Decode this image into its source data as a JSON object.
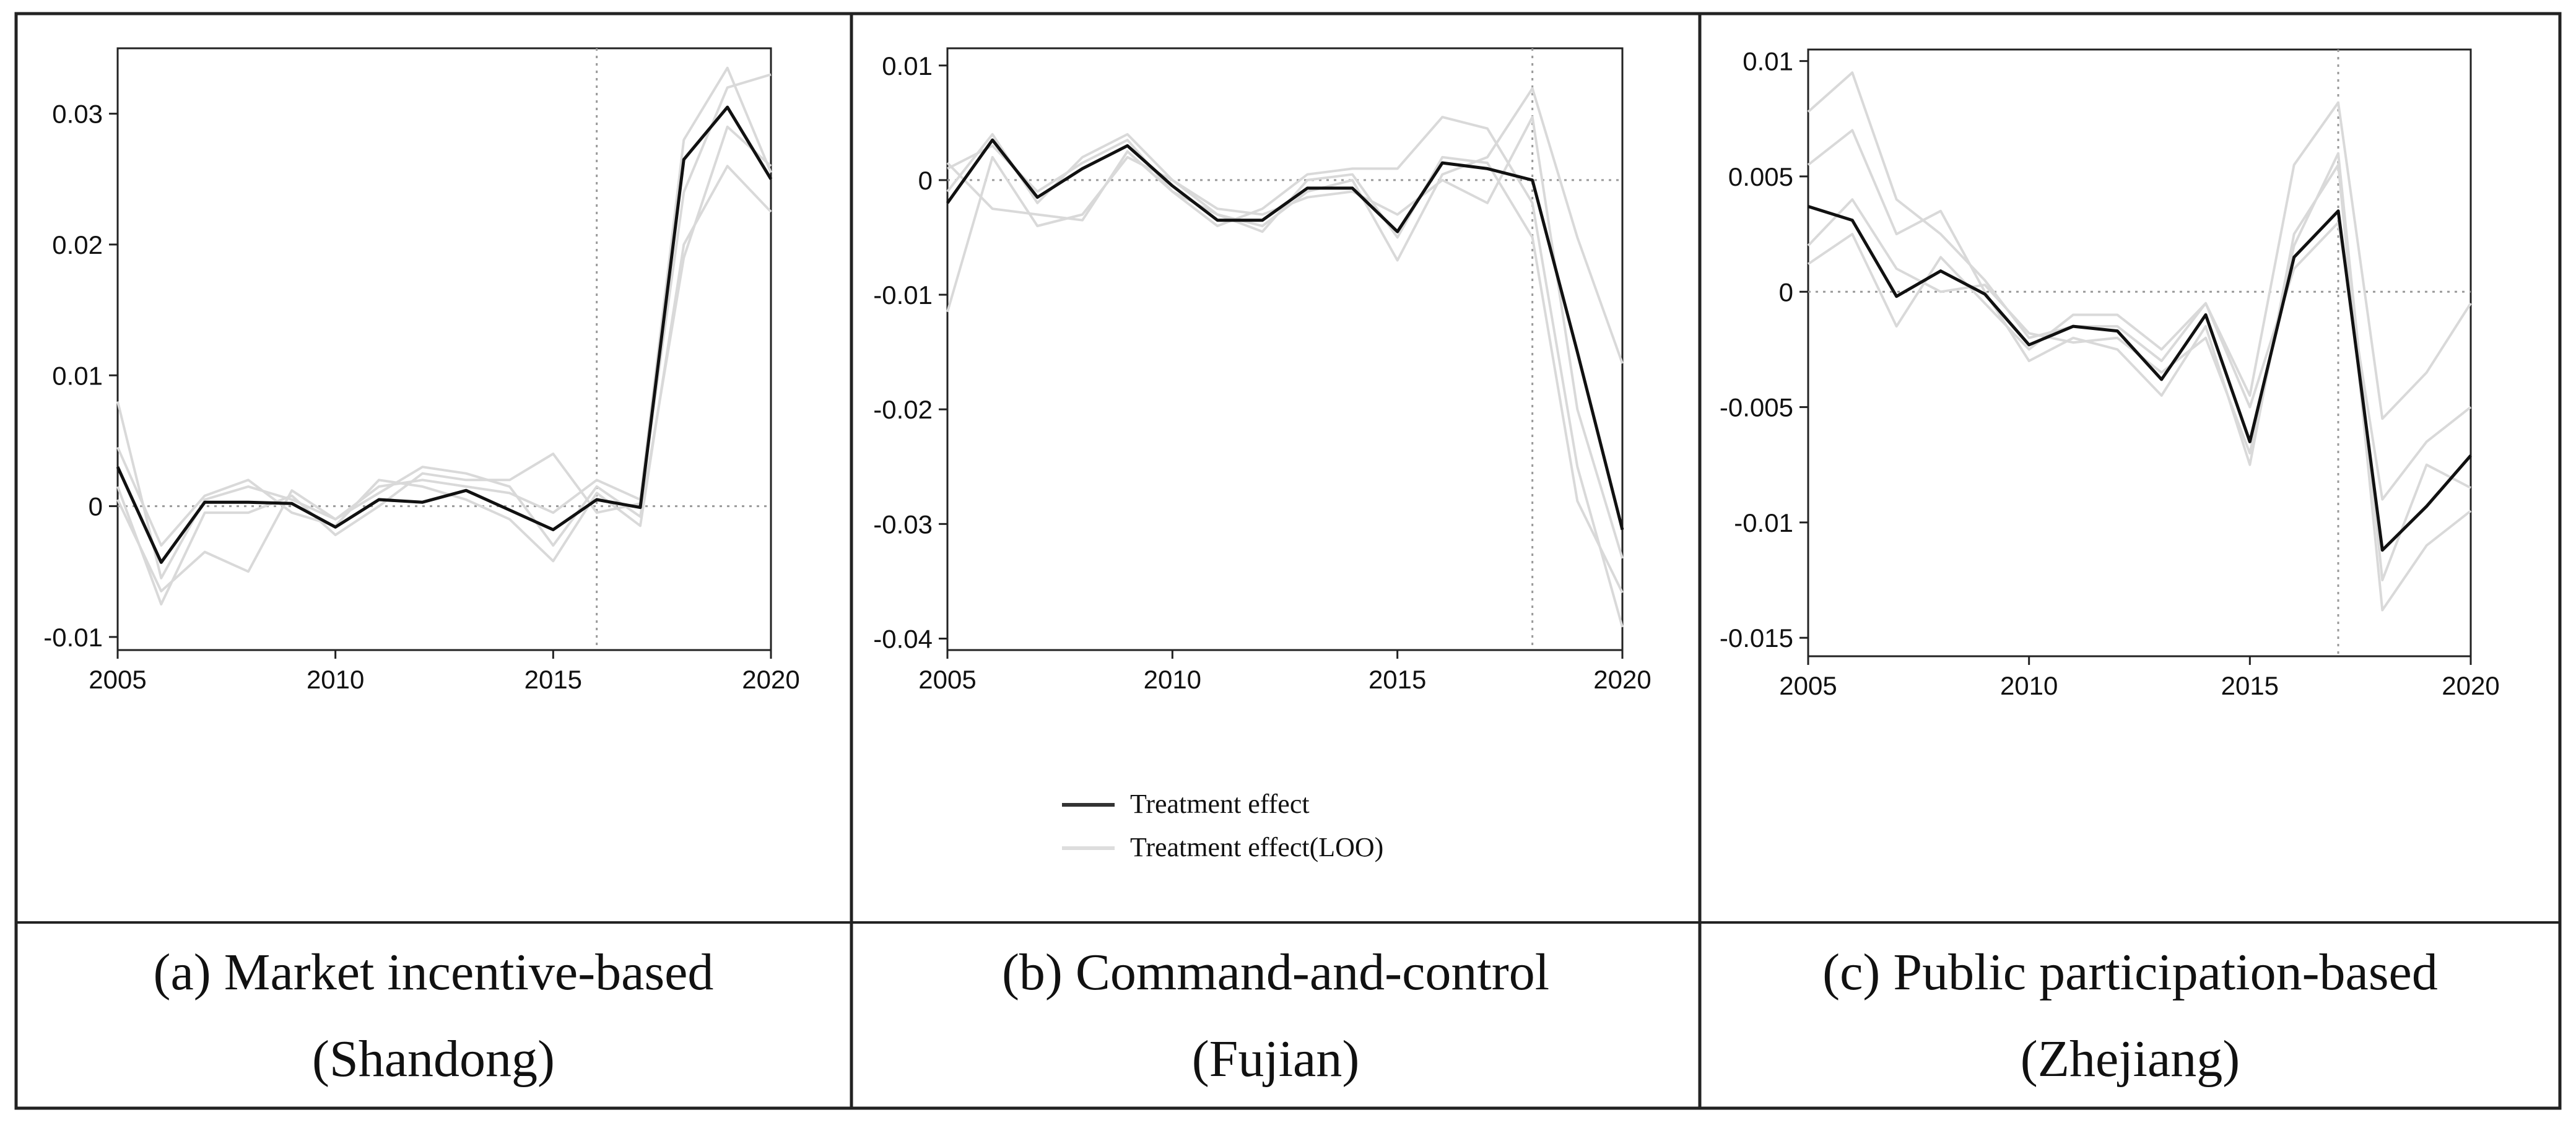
{
  "legend": {
    "main_label": "Treatment effect",
    "loo_label": "Treatment effect(LOO)"
  },
  "captions": [
    {
      "line1": "(a) Market incentive-based",
      "line2": "(Shandong)"
    },
    {
      "line1": "(b) Command-and-control",
      "line2": "(Fujian)"
    },
    {
      "line1": "(c) Public participation-based",
      "line2": "(Zhejiang)"
    }
  ],
  "colors": {
    "main_line": "#111111",
    "loo_line": "#d9d9d9",
    "reference_line": "#9a9a9a",
    "border": "#222222"
  },
  "chart_data": [
    {
      "type": "line",
      "title": "",
      "xlabel": "",
      "ylabel": "",
      "xlim": [
        2005,
        2020
      ],
      "ylim": [
        -0.011,
        0.035
      ],
      "xticks": [
        2005,
        2010,
        2015,
        2020
      ],
      "xtick_labels": [
        "2005",
        "2010",
        "2015",
        "2020"
      ],
      "yticks": [
        -0.01,
        0,
        0.01,
        0.02,
        0.03
      ],
      "ytick_labels": [
        "-0.01",
        "0",
        "0.01",
        "0.02",
        "0.03"
      ],
      "zero_line": 0,
      "treatment_year": 2016,
      "grid": false,
      "x": [
        2005,
        2006,
        2007,
        2008,
        2009,
        2010,
        2011,
        2012,
        2013,
        2014,
        2015,
        2016,
        2017,
        2018,
        2019,
        2020
      ],
      "series": [
        {
          "name": "Treatment effect",
          "role": "main",
          "values": [
            0.003,
            -0.0043,
            0.0003,
            0.0003,
            0.0002,
            -0.0016,
            0.0005,
            0.0003,
            0.0012,
            -0.0003,
            -0.0018,
            0.0005,
            -0.0001,
            0.0265,
            0.0305,
            0.025
          ]
        },
        {
          "role": "loo",
          "values": [
            0.008,
            -0.0055,
            0.0005,
            0.0015,
            0.0005,
            -0.001,
            0.0015,
            0.002,
            0.0015,
            0.001,
            -0.0005,
            0.002,
            0.0005,
            0.028,
            0.0335,
            0.0255
          ]
        },
        {
          "role": "loo",
          "values": [
            0.0015,
            -0.0075,
            -0.0005,
            -0.0005,
            0.0008,
            -0.0022,
            0.0,
            0.0025,
            0.002,
            0.002,
            0.004,
            -0.0005,
            0.0002,
            0.024,
            0.032,
            0.033
          ]
        },
        {
          "role": "loo",
          "values": [
            0.0045,
            -0.003,
            0.0008,
            0.002,
            -0.0005,
            -0.0015,
            0.002,
            0.0015,
            0.0005,
            -0.001,
            -0.0042,
            0.001,
            -0.0015,
            0.02,
            0.026,
            0.0225
          ]
        },
        {
          "role": "loo",
          "values": [
            0.0005,
            -0.0065,
            -0.0035,
            -0.005,
            0.0012,
            -0.001,
            0.001,
            0.003,
            0.0025,
            0.0015,
            -0.003,
            0.0015,
            -0.0008,
            0.019,
            0.029,
            0.026
          ]
        }
      ]
    },
    {
      "type": "line",
      "title": "",
      "xlabel": "",
      "ylabel": "",
      "xlim": [
        2005,
        2020
      ],
      "ylim": [
        -0.041,
        0.0115
      ],
      "xticks": [
        2005,
        2010,
        2015,
        2020
      ],
      "xtick_labels": [
        "2005",
        "2010",
        "2015",
        "2020"
      ],
      "yticks": [
        -0.04,
        -0.03,
        -0.02,
        -0.01,
        0,
        0.01
      ],
      "ytick_labels": [
        "-0.04",
        "-0.03",
        "-0.02",
        "-0.01",
        "0",
        "0.01"
      ],
      "zero_line": 0,
      "treatment_year": 2018,
      "grid": false,
      "x": [
        2005,
        2006,
        2007,
        2008,
        2009,
        2010,
        2011,
        2012,
        2013,
        2014,
        2015,
        2016,
        2017,
        2018,
        2019,
        2020
      ],
      "series": [
        {
          "name": "Treatment effect",
          "role": "main",
          "values": [
            -0.002,
            0.0035,
            -0.0015,
            0.001,
            0.003,
            -0.0005,
            -0.0035,
            -0.0035,
            -0.0007,
            -0.0007,
            -0.0045,
            0.0015,
            0.001,
            0.0,
            -0.015,
            -0.0305
          ]
        },
        {
          "role": "loo",
          "values": [
            -0.0115,
            0.002,
            -0.004,
            -0.003,
            0.002,
            0.0,
            -0.003,
            -0.004,
            -0.001,
            0.0,
            -0.007,
            0.0005,
            0.002,
            0.008,
            -0.005,
            -0.016
          ]
        },
        {
          "role": "loo",
          "values": [
            0.0015,
            -0.0025,
            -0.003,
            -0.0035,
            0.0025,
            -0.001,
            -0.004,
            -0.0025,
            0.0005,
            0.001,
            0.001,
            0.0055,
            0.0045,
            -0.002,
            -0.025,
            -0.039
          ]
        },
        {
          "role": "loo",
          "values": [
            -0.001,
            0.004,
            -0.002,
            0.002,
            0.004,
            0.0,
            -0.0025,
            -0.003,
            -0.0015,
            -0.001,
            -0.003,
            0.0,
            -0.002,
            0.0055,
            -0.02,
            -0.033
          ]
        },
        {
          "role": "loo",
          "values": [
            0.001,
            0.003,
            -0.001,
            0.0015,
            0.0035,
            -0.001,
            -0.003,
            -0.0045,
            0.0,
            0.0005,
            -0.005,
            0.002,
            0.0015,
            -0.005,
            -0.028,
            -0.036
          ]
        }
      ]
    },
    {
      "type": "line",
      "title": "",
      "xlabel": "",
      "ylabel": "",
      "xlim": [
        2005,
        2020
      ],
      "ylim": [
        -0.0158,
        0.0105
      ],
      "xticks": [
        2005,
        2010,
        2015,
        2020
      ],
      "xtick_labels": [
        "2005",
        "2010",
        "2015",
        "2020"
      ],
      "yticks": [
        -0.015,
        -0.01,
        -0.005,
        0,
        0.005,
        0.01
      ],
      "ytick_labels": [
        "-0.015",
        "-0.01",
        "-0.005",
        "0",
        "0.005",
        "0.01"
      ],
      "zero_line": 0,
      "treatment_year": 2017,
      "grid": false,
      "x": [
        2005,
        2006,
        2007,
        2008,
        2009,
        2010,
        2011,
        2012,
        2013,
        2014,
        2015,
        2016,
        2017,
        2018,
        2019,
        2020
      ],
      "series": [
        {
          "name": "Treatment effect",
          "role": "main",
          "values": [
            0.0037,
            0.0031,
            -0.0002,
            0.0009,
            -0.0001,
            -0.0023,
            -0.0015,
            -0.0017,
            -0.0038,
            -0.001,
            -0.0065,
            0.0015,
            0.0035,
            -0.0112,
            -0.0093,
            -0.0071
          ]
        },
        {
          "role": "loo",
          "values": [
            0.0078,
            0.0095,
            0.004,
            0.0025,
            0.0005,
            -0.002,
            -0.0015,
            -0.0015,
            -0.003,
            -0.0005,
            -0.0045,
            0.0055,
            0.0082,
            -0.0055,
            -0.0035,
            -0.0005
          ]
        },
        {
          "role": "loo",
          "values": [
            0.0055,
            0.007,
            0.0025,
            0.0035,
            0.0,
            -0.003,
            -0.002,
            -0.0025,
            -0.0045,
            -0.0015,
            -0.0075,
            0.0025,
            0.0055,
            -0.0138,
            -0.011,
            -0.0095
          ]
        },
        {
          "role": "loo",
          "values": [
            0.0012,
            0.0025,
            -0.0015,
            0.0015,
            -0.0005,
            -0.0025,
            -0.001,
            -0.001,
            -0.0025,
            -0.0005,
            -0.005,
            0.001,
            0.003,
            -0.009,
            -0.0065,
            -0.005
          ]
        },
        {
          "role": "loo",
          "values": [
            0.002,
            0.004,
            0.001,
            0.0,
            0.0003,
            -0.0018,
            -0.0022,
            -0.002,
            -0.0035,
            -0.002,
            -0.007,
            0.002,
            0.006,
            -0.0125,
            -0.0075,
            -0.0085
          ]
        }
      ]
    }
  ]
}
